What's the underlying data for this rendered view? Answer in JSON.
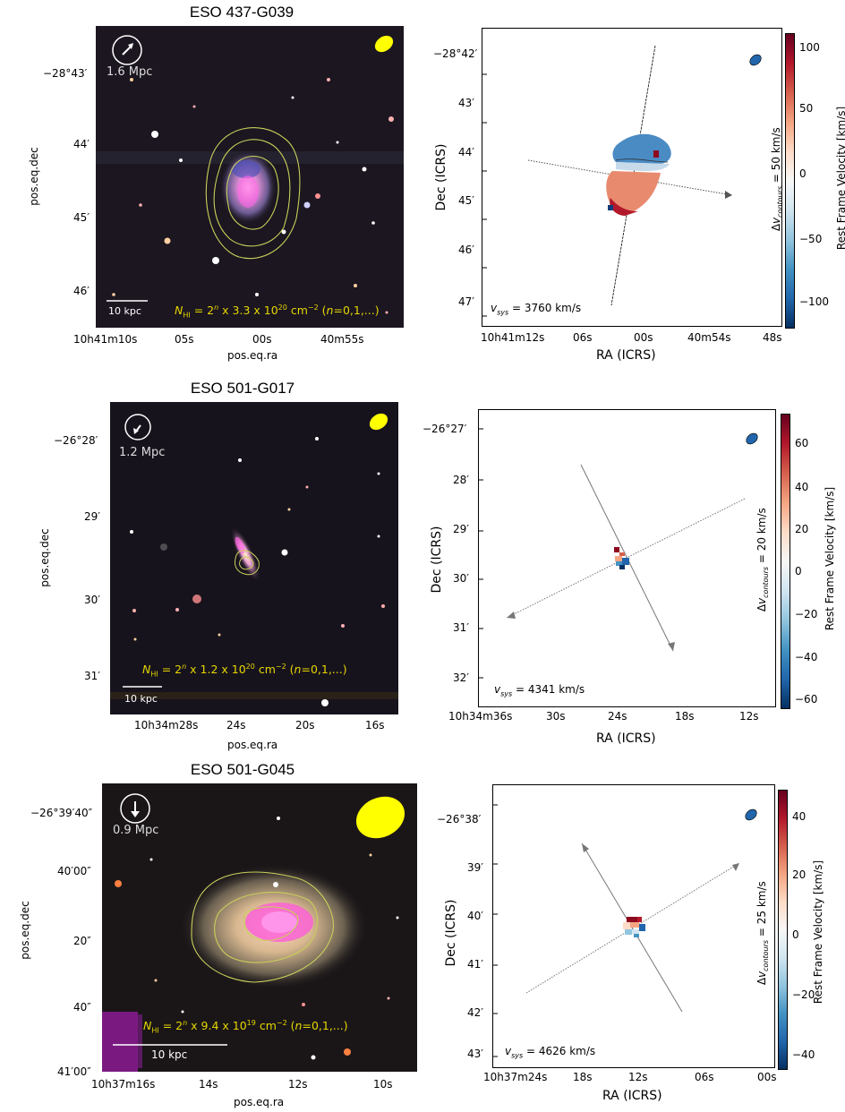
{
  "panels": [
    {
      "title": "ESO 437-G039",
      "optical": {
        "distance": "1.6 Mpc",
        "scalebar": "10 kpc",
        "nhi_text": "N",
        "nhi_sub": "HI",
        "nhi_eq": " = 2",
        "nhi_exp_n": "n",
        "nhi_mid": " x 3.3 x 10",
        "nhi_exp": "20",
        "nhi_unit": " cm",
        "nhi_unit_exp": "−2",
        "nhi_tail_open": " (",
        "nhi_tail_n": "n",
        "nhi_tail": "=0,1,...)",
        "xlabel": "pos.eq.ra",
        "ylabel": "pos.eq.dec",
        "yticks": [
          "−28°43′",
          "44′",
          "45′",
          "46′"
        ],
        "xticks": [
          "10h41m10s",
          "05s",
          "00s",
          "40m55s"
        ]
      },
      "velocity": {
        "vsys": " = 3760  km/s",
        "xlabel": "RA (ICRS)",
        "ylabel": "Dec (ICRS)",
        "yticks": [
          "−28°42′",
          "43′",
          "44′",
          "45′",
          "46′",
          "47′"
        ],
        "xticks": [
          "10h41m12s",
          "06s",
          "00s",
          "40m54s",
          "48s"
        ],
        "dv_label": " = 50 km/s",
        "cbar_label": "Rest Frame Velocity [km/s]",
        "cbar_ticks": [
          "100",
          "50",
          "0",
          "−50",
          "−100"
        ]
      }
    },
    {
      "title": "ESO 501-G017",
      "optical": {
        "distance": "1.2 Mpc",
        "scalebar": "10 kpc",
        "nhi_text": "N",
        "nhi_sub": "HI",
        "nhi_eq": " = 2",
        "nhi_exp_n": "n",
        "nhi_mid": " x 1.2 x 10",
        "nhi_exp": "20",
        "nhi_unit": " cm",
        "nhi_unit_exp": "−2",
        "nhi_tail_open": " (",
        "nhi_tail_n": "n",
        "nhi_tail": "=0,1,...)",
        "xlabel": "pos.eq.ra",
        "ylabel": "pos.eq.dec",
        "yticks": [
          "−26°28′",
          "29′",
          "30′",
          "31′"
        ],
        "xticks": [
          "10h34m28s",
          "24s",
          "20s",
          "16s"
        ]
      },
      "velocity": {
        "vsys": " = 4341  km/s",
        "xlabel": "RA (ICRS)",
        "ylabel": "Dec (ICRS)",
        "yticks": [
          "−26°27′",
          "28′",
          "29′",
          "30′",
          "31′",
          "32′"
        ],
        "xticks": [
          "10h34m36s",
          "30s",
          "24s",
          "18s",
          "12s"
        ],
        "dv_label": " = 20 km/s",
        "cbar_label": "Rest Frame Velocity [km/s]",
        "cbar_ticks": [
          "60",
          "40",
          "20",
          "0",
          "−20",
          "−40",
          "−60"
        ]
      }
    },
    {
      "title": "ESO 501-G045",
      "optical": {
        "distance": "0.9 Mpc",
        "scalebar": "10 kpc",
        "nhi_text": "N",
        "nhi_sub": "HI",
        "nhi_eq": " = 2",
        "nhi_exp_n": "n",
        "nhi_mid": " x 9.4 x 10",
        "nhi_exp": "19",
        "nhi_unit": " cm",
        "nhi_unit_exp": "−2",
        "nhi_tail_open": " (",
        "nhi_tail_n": "n",
        "nhi_tail": "=0,1,...)",
        "xlabel": "pos.eq.ra",
        "ylabel": "pos.eq.dec",
        "yticks": [
          "−26°39′40″",
          "40′00″",
          "20″",
          "40″",
          "41′00″"
        ],
        "xticks": [
          "10h37m16s",
          "14s",
          "12s",
          "10s"
        ]
      },
      "velocity": {
        "vsys": " = 4626  km/s",
        "xlabel": "RA (ICRS)",
        "ylabel": "Dec (ICRS)",
        "yticks": [
          "−26°38′",
          "39′",
          "40′",
          "41′",
          "42′",
          "43′"
        ],
        "xticks": [
          "10h37m24s",
          "18s",
          "12s",
          "06s",
          "00s"
        ],
        "dv_label": " = 25 km/s",
        "cbar_label": "Rest Frame Velocity [km/s]",
        "cbar_ticks": [
          "40",
          "20",
          "0",
          "−20",
          "−40"
        ]
      }
    }
  ],
  "colors": {
    "sky": "#1c1722",
    "contour": "#c9cf5a",
    "beam": "#ffff00",
    "nhi_text": "#e6d600",
    "red": "#8e0a1f",
    "blue": "#0d3d7a"
  }
}
